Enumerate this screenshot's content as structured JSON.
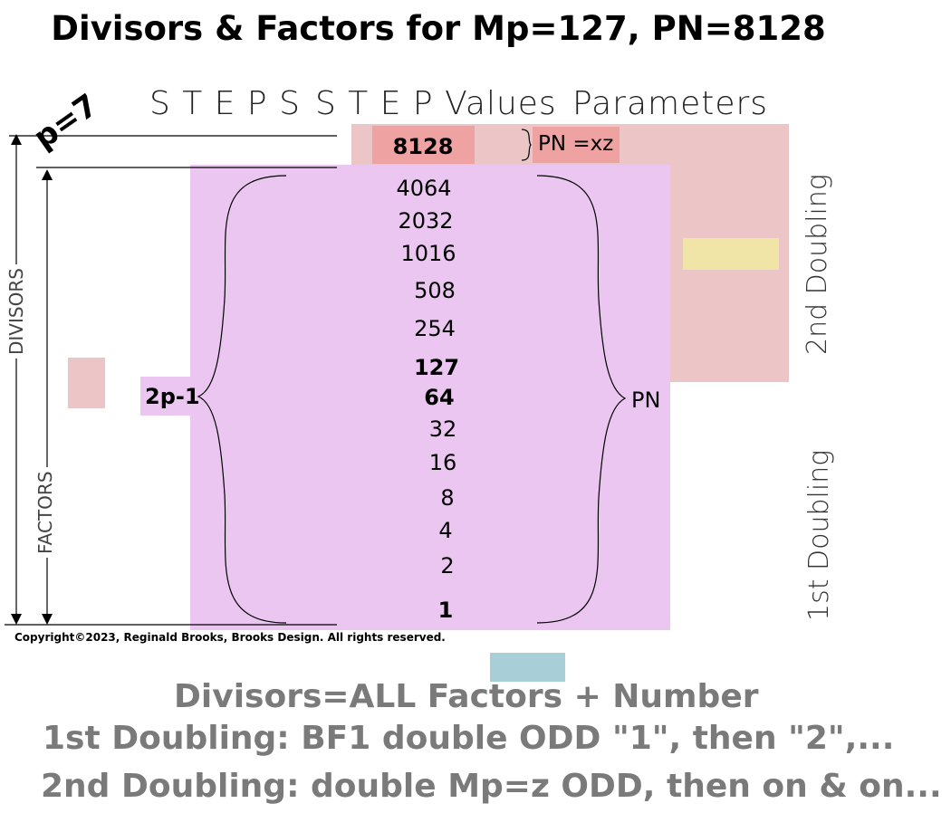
{
  "title": "Divisors & Factors for Mp=127, PN=8128",
  "p_label": "p=7",
  "headers": {
    "steps": "S T E P S",
    "step_values": "S T E P Values",
    "parameters": "Parameters"
  },
  "top_value": "8128",
  "pn_xz": "PN =xz",
  "steps": [
    "4064",
    "2032",
    "1016",
    "508",
    "254",
    "127",
    "64",
    "32",
    "16",
    "8",
    "4",
    "2",
    "1"
  ],
  "left_brace_label": "2p-1",
  "right_brace_label": "PN",
  "side_labels": {
    "second": "2nd Doubling",
    "first": "1st Doubling"
  },
  "axis_labels": {
    "divisors": "DIVISORS",
    "factors": "FACTORS"
  },
  "copyright": "Copyright©2023, Reginald Brooks, Brooks Design. All rights reserved.",
  "footer": [
    "Divisors=ALL Factors + Number",
    "1st Doubling: BF1 double ODD \"1\", then \"2\",...",
    "2nd Doubling: double Mp=z ODD, then on & on..."
  ],
  "colors": {
    "pink_light": "#ecc6c6",
    "pink_dark": "#eea2a2",
    "violet": "#eac6f0",
    "yellow": "#f0e4a6",
    "teal": "#a8cfd8",
    "footer_gray": "#7a7a7a"
  }
}
